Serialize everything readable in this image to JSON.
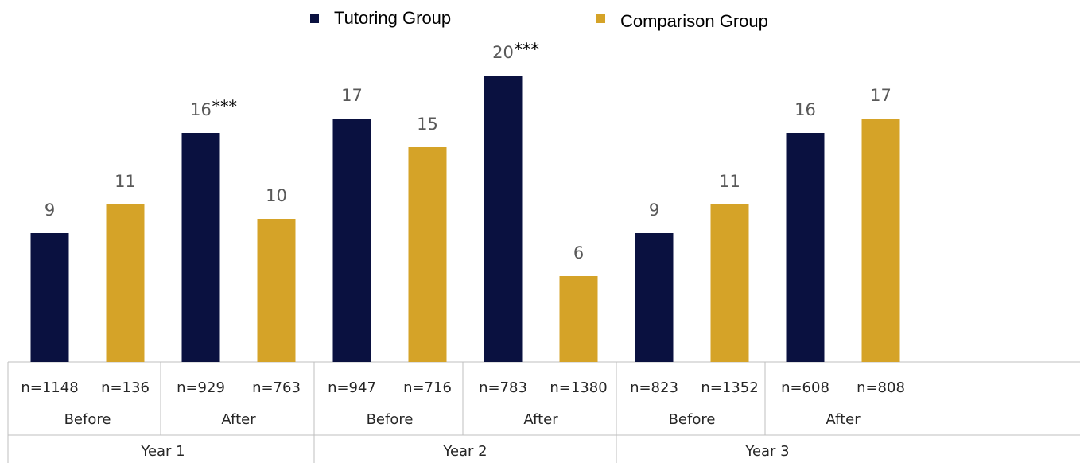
{
  "chart_data": {
    "type": "bar",
    "ylim": [
      0,
      20
    ],
    "years": [
      {
        "label": "Year 1",
        "periods": [
          {
            "label": "Before",
            "categories": [
              "n=1148",
              "n=136"
            ]
          },
          {
            "label": "After",
            "categories": [
              "n=929",
              "n=763"
            ]
          }
        ]
      },
      {
        "label": "Year 2",
        "periods": [
          {
            "label": "Before",
            "categories": [
              "n=947",
              "n=716"
            ]
          },
          {
            "label": "After",
            "categories": [
              "n=783",
              "n=1380"
            ]
          }
        ]
      },
      {
        "label": "Year 3",
        "periods": [
          {
            "label": "Before",
            "categories": [
              "n=823",
              "n=1352"
            ]
          },
          {
            "label": "After",
            "categories": [
              "n=608",
              "n=808"
            ]
          }
        ]
      }
    ],
    "series": [
      {
        "name": "Tutoring Group",
        "color": "#0a1140",
        "values": [
          9,
          null,
          16,
          null,
          17,
          null,
          20,
          null,
          9,
          null,
          16,
          null
        ],
        "annotations": [
          null,
          null,
          "***",
          null,
          null,
          null,
          "***",
          null,
          null,
          null,
          null,
          null
        ]
      },
      {
        "name": "Comparison Group",
        "color": "#d5a328",
        "values": [
          null,
          11,
          null,
          10,
          null,
          15,
          null,
          6,
          null,
          11,
          null,
          17
        ],
        "annotations": [
          null,
          null,
          null,
          null,
          null,
          null,
          null,
          null,
          null,
          null,
          null,
          null
        ]
      }
    ]
  }
}
